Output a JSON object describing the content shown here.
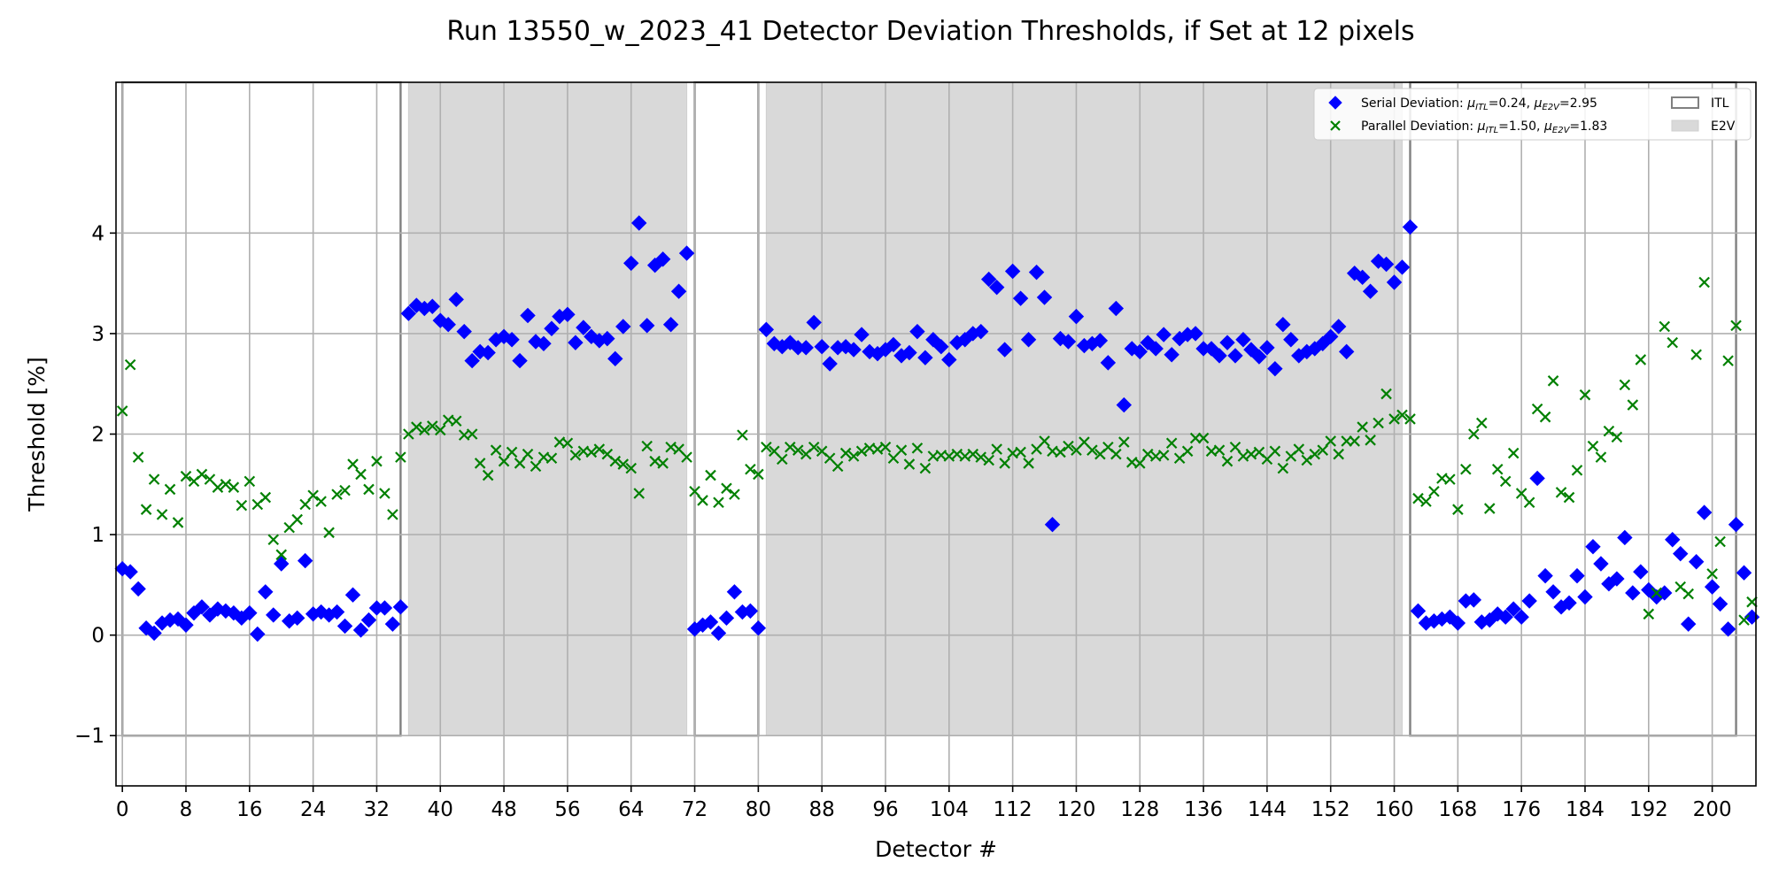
{
  "chart_data": {
    "type": "scatter",
    "title": "Run 13550_w_2023_41 Detector Deviation Thresholds, if Set at 12 pixels",
    "xlabel": "Detector #",
    "ylabel": "Threshold [%]",
    "xlim": [
      -0.8,
      205.5
    ],
    "ylim": [
      -1.5,
      5.5
    ],
    "xticks": [
      0,
      8,
      16,
      24,
      32,
      40,
      48,
      56,
      64,
      72,
      80,
      88,
      96,
      104,
      112,
      120,
      128,
      136,
      144,
      152,
      160,
      168,
      176,
      184,
      192,
      200
    ],
    "yticks": [
      -1,
      0,
      1,
      2,
      3,
      4
    ],
    "ytick_labels": [
      "−1",
      "0",
      "1",
      "2",
      "3",
      "4"
    ],
    "grid": true,
    "legend_position": "top-right",
    "regions": [
      {
        "type": "ITL",
        "x0": 0,
        "x1": 35,
        "y0": -1,
        "y1": 5.5
      },
      {
        "type": "E2V",
        "x0": 36,
        "x1": 71,
        "y0": -1,
        "y1": 5.5
      },
      {
        "type": "ITL",
        "x0": 72,
        "x1": 80,
        "y0": -1,
        "y1": 5.5
      },
      {
        "type": "E2V",
        "x0": 81,
        "x1": 161,
        "y0": -1,
        "y1": 5.5
      },
      {
        "type": "ITL",
        "x0": 162,
        "x1": 203,
        "y0": -1,
        "y1": 5.5
      }
    ],
    "legend": {
      "series": [
        {
          "label": "Serial Deviation: ",
          "mu1_sub": "ITL",
          "mu1_val": "=0.24, ",
          "mu2_sub": "E2V",
          "mu2_val": "=2.95"
        },
        {
          "label": "Parallel Deviation: ",
          "mu1_sub": "ITL",
          "mu1_val": "=1.50, ",
          "mu2_sub": "E2V",
          "mu2_val": "=1.83"
        }
      ],
      "regions": [
        "ITL",
        "E2V"
      ]
    },
    "series": [
      {
        "marker": "diamond",
        "color": "#0000ff",
        "x_start": 0,
        "values": [
          0.66,
          0.63,
          0.46,
          0.07,
          0.02,
          0.12,
          0.15,
          0.16,
          0.1,
          0.22,
          0.28,
          0.2,
          0.26,
          0.24,
          0.22,
          0.17,
          0.22,
          0.01,
          0.43,
          0.2,
          0.71,
          0.14,
          0.17,
          0.74,
          0.21,
          0.23,
          0.2,
          0.23,
          0.09,
          0.4,
          0.05,
          0.15,
          0.27,
          0.27,
          0.11,
          0.28,
          3.2,
          3.28,
          3.25,
          3.27,
          3.13,
          3.09,
          3.34,
          3.02,
          2.73,
          2.82,
          2.81,
          2.94,
          2.97,
          2.94,
          2.73,
          3.18,
          2.92,
          2.9,
          3.05,
          3.17,
          3.19,
          2.91,
          3.06,
          2.97,
          2.93,
          2.95,
          2.75,
          3.07,
          3.7,
          4.1,
          3.08,
          3.68,
          3.74,
          3.09,
          3.42,
          3.8,
          0.06,
          0.1,
          0.13,
          0.02,
          0.17,
          0.43,
          0.23,
          0.24,
          0.07,
          3.04,
          2.9,
          2.87,
          2.91,
          2.86,
          2.86,
          3.11,
          2.87,
          2.7,
          2.86,
          2.87,
          2.84,
          2.99,
          2.82,
          2.8,
          2.84,
          2.89,
          2.78,
          2.81,
          3.02,
          2.76,
          2.94,
          2.87,
          2.74,
          2.91,
          2.94,
          3.0,
          3.02,
          3.54,
          3.46,
          2.84,
          3.62,
          3.35,
          2.94,
          3.61,
          3.36,
          1.1,
          2.95,
          2.92,
          3.17,
          2.88,
          2.9,
          2.93,
          2.71,
          3.25,
          2.29,
          2.85,
          2.82,
          2.91,
          2.85,
          2.99,
          2.79,
          2.95,
          2.99,
          3.0,
          2.85,
          2.85,
          2.78,
          2.91,
          2.78,
          2.94,
          2.84,
          2.77,
          2.86,
          2.65,
          3.09,
          2.94,
          2.78,
          2.82,
          2.85,
          2.9,
          2.97,
          3.07,
          2.82,
          3.6,
          3.56,
          3.42,
          3.72,
          3.69,
          3.51,
          3.66,
          4.06,
          0.24,
          0.12,
          0.14,
          0.16,
          0.18,
          0.12,
          0.34,
          0.35,
          0.13,
          0.15,
          0.21,
          0.18,
          0.26,
          0.18,
          0.34,
          1.56,
          0.59,
          0.43,
          0.28,
          0.32,
          0.59,
          0.38,
          0.88,
          0.71,
          0.51,
          0.56,
          0.97,
          0.42,
          0.63,
          0.45,
          0.38,
          0.42,
          0.95,
          0.81,
          0.11,
          0.73,
          1.22,
          0.48,
          0.31,
          0.06,
          1.1,
          0.62,
          0.18
        ]
      },
      {
        "marker": "x",
        "color": "#008000",
        "x_start": 0,
        "values": [
          2.23,
          2.69,
          1.77,
          1.25,
          1.55,
          1.2,
          1.45,
          1.12,
          1.58,
          1.53,
          1.6,
          1.55,
          1.47,
          1.5,
          1.47,
          1.29,
          1.53,
          1.3,
          1.37,
          0.95,
          0.8,
          1.07,
          1.15,
          1.3,
          1.39,
          1.33,
          1.02,
          1.4,
          1.44,
          1.7,
          1.6,
          1.45,
          1.73,
          1.41,
          1.2,
          1.77,
          2.0,
          2.07,
          2.04,
          2.08,
          2.04,
          2.14,
          2.13,
          1.99,
          2.0,
          1.71,
          1.59,
          1.84,
          1.73,
          1.82,
          1.71,
          1.8,
          1.68,
          1.77,
          1.76,
          1.92,
          1.91,
          1.79,
          1.83,
          1.82,
          1.85,
          1.8,
          1.73,
          1.7,
          1.66,
          1.41,
          1.88,
          1.73,
          1.71,
          1.87,
          1.85,
          1.77,
          1.43,
          1.34,
          1.59,
          1.32,
          1.46,
          1.4,
          1.99,
          1.65,
          1.6,
          1.87,
          1.83,
          1.75,
          1.87,
          1.84,
          1.8,
          1.87,
          1.83,
          1.76,
          1.68,
          1.81,
          1.78,
          1.83,
          1.86,
          1.85,
          1.87,
          1.76,
          1.84,
          1.7,
          1.86,
          1.66,
          1.78,
          1.79,
          1.78,
          1.8,
          1.78,
          1.8,
          1.77,
          1.74,
          1.85,
          1.71,
          1.81,
          1.82,
          1.71,
          1.85,
          1.93,
          1.83,
          1.82,
          1.88,
          1.84,
          1.92,
          1.84,
          1.8,
          1.87,
          1.8,
          1.92,
          1.72,
          1.71,
          1.8,
          1.78,
          1.79,
          1.91,
          1.76,
          1.83,
          1.96,
          1.96,
          1.83,
          1.84,
          1.73,
          1.87,
          1.78,
          1.8,
          1.82,
          1.75,
          1.83,
          1.66,
          1.78,
          1.85,
          1.74,
          1.8,
          1.84,
          1.93,
          1.8,
          1.93,
          1.93,
          2.07,
          1.94,
          2.11,
          2.4,
          2.15,
          2.19,
          2.15,
          1.36,
          1.33,
          1.43,
          1.56,
          1.55,
          1.25,
          1.65,
          2.0,
          2.11,
          1.26,
          1.65,
          1.53,
          1.81,
          1.41,
          1.32,
          2.25,
          2.17,
          2.53,
          1.42,
          1.37,
          1.64,
          2.39,
          1.88,
          1.77,
          2.03,
          1.97,
          2.49,
          2.29,
          2.74,
          0.21,
          0.42,
          3.07,
          2.91,
          0.48,
          0.41,
          2.79,
          3.51,
          0.61,
          0.93,
          2.73,
          3.08,
          0.15,
          0.33
        ]
      }
    ]
  }
}
